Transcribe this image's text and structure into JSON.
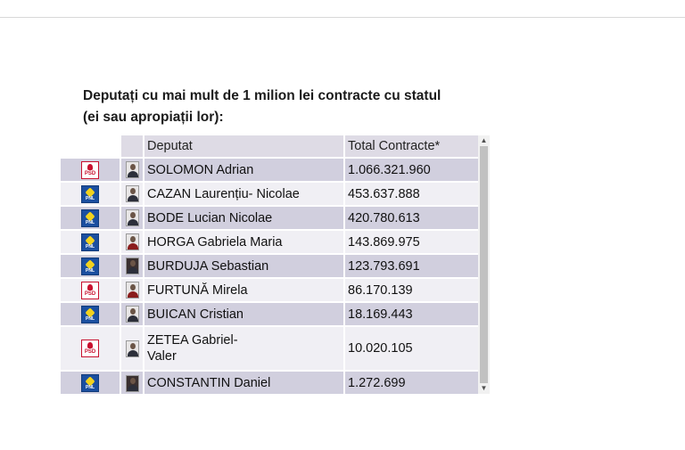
{
  "heading": {
    "line1": "Deputați cu mai mult de 1 milion lei contracte cu statul",
    "line2": "(ei sau apropiații lor):"
  },
  "table": {
    "columns": [
      "",
      "",
      "Deputat",
      "Total Contracte*"
    ],
    "rows": [
      {
        "party": "PSD",
        "name": "SOLOMON Adrian",
        "total": "1.066.321.960"
      },
      {
        "party": "PNL",
        "name": "CAZAN Laurențiu- Nicolae",
        "total": "453.637.888"
      },
      {
        "party": "PNL",
        "name": "BODE Lucian Nicolae",
        "total": "420.780.613"
      },
      {
        "party": "PNL",
        "name": "HORGA Gabriela Maria",
        "total": "143.869.975"
      },
      {
        "party": "PNL",
        "name": "BURDUJA Sebastian",
        "total": "123.793.691"
      },
      {
        "party": "PSD",
        "name": "FURTUNĂ Mirela",
        "total": "86.170.139"
      },
      {
        "party": "PNL",
        "name": "BUICAN Cristian",
        "total": "18.169.443"
      },
      {
        "party": "PSD",
        "name": "ZETEA Gabriel-Valer",
        "name_line1": "ZETEA Gabriel-",
        "name_line2": "Valer",
        "total": "10.020.105"
      },
      {
        "party": "PNL",
        "name": "CONSTANTIN Daniel",
        "total": "1.272.699"
      }
    ]
  },
  "icons": {
    "psd_logo": "psd-party-logo",
    "pnl_logo": "pnl-party-logo",
    "scroll_up": "chevron-up-icon",
    "scroll_down": "chevron-down-icon"
  },
  "colors": {
    "header_bg": "#dedbe5",
    "row_odd": "#d1cfde",
    "row_even": "#f0eff4",
    "psd_red": "#c8102e",
    "pnl_blue": "#1b4fa0",
    "pnl_yellow": "#f2d21e"
  }
}
